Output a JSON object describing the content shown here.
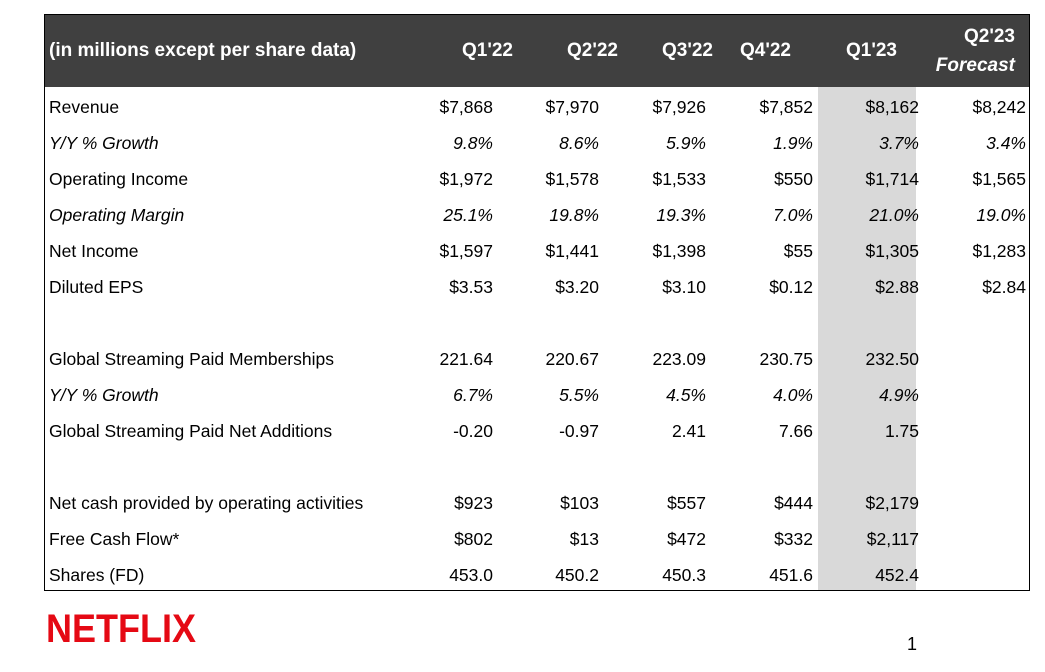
{
  "header": {
    "label": "(in millions except per share data)",
    "columns": [
      "Q1'22",
      "Q2'22",
      "Q3'22",
      "Q4'22",
      "Q1'23"
    ],
    "forecast_line1": "Q2'23",
    "forecast_line2": "Forecast"
  },
  "rows": [
    {
      "label": "Revenue",
      "italic": false,
      "values": [
        "$7,868",
        "$7,970",
        "$7,926",
        "$7,852",
        "$8,162",
        "$8,242"
      ]
    },
    {
      "label": "Y/Y % Growth",
      "italic": true,
      "values": [
        "9.8%",
        "8.6%",
        "5.9%",
        "1.9%",
        "3.7%",
        "3.4%"
      ]
    },
    {
      "label": "Operating Income",
      "italic": false,
      "values": [
        "$1,972",
        "$1,578",
        "$1,533",
        "$550",
        "$1,714",
        "$1,565"
      ]
    },
    {
      "label": "Operating Margin",
      "italic": true,
      "values": [
        "25.1%",
        "19.8%",
        "19.3%",
        "7.0%",
        "21.0%",
        "19.0%"
      ]
    },
    {
      "label": "Net Income",
      "italic": false,
      "values": [
        "$1,597",
        "$1,441",
        "$1,398",
        "$55",
        "$1,305",
        "$1,283"
      ]
    },
    {
      "label": "Diluted EPS",
      "italic": false,
      "values": [
        "$3.53",
        "$3.20",
        "$3.10",
        "$0.12",
        "$2.88",
        "$2.84"
      ]
    },
    null,
    {
      "label": "Global Streaming Paid Memberships",
      "italic": false,
      "values": [
        "221.64",
        "220.67",
        "223.09",
        "230.75",
        "232.50",
        ""
      ]
    },
    {
      "label": "Y/Y % Growth",
      "italic": true,
      "values": [
        "6.7%",
        "5.5%",
        "4.5%",
        "4.0%",
        "4.9%",
        ""
      ]
    },
    {
      "label": "Global Streaming Paid Net Additions",
      "italic": false,
      "values": [
        "-0.20",
        "-0.97",
        "2.41",
        "7.66",
        "1.75",
        ""
      ]
    },
    null,
    {
      "label": "Net cash provided by operating activities",
      "italic": false,
      "values": [
        "$923",
        "$103",
        "$557",
        "$444",
        "$2,179",
        ""
      ]
    },
    {
      "label": "Free Cash Flow*",
      "italic": false,
      "values": [
        "$802",
        "$13",
        "$472",
        "$332",
        "$2,117",
        ""
      ]
    },
    {
      "label": "Shares (FD)",
      "italic": false,
      "values": [
        "453.0",
        "450.2",
        "450.3",
        "451.6",
        "452.4",
        ""
      ]
    }
  ],
  "logo_text": "NETFLIX",
  "colors": {
    "header_bg": "#404040",
    "highlight_col": "#d9d9d9",
    "logo_red": "#e50914"
  },
  "page_number": "1"
}
